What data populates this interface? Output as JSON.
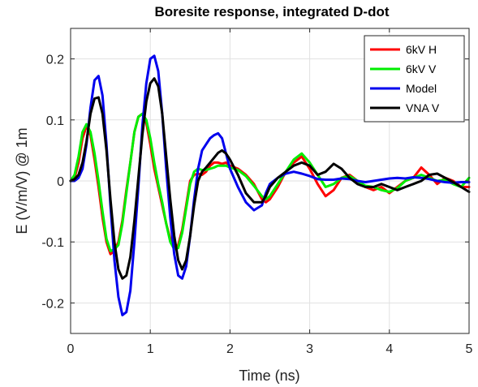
{
  "chart_data": {
    "type": "line",
    "title": "Boresite response, integrated D-dot",
    "xlabel": "Time (ns)",
    "ylabel": "E (V/m/V) @ 1m",
    "xlim": [
      0,
      5
    ],
    "ylim": [
      -0.25,
      0.25
    ],
    "xticks": [
      0,
      1,
      2,
      3,
      4,
      5
    ],
    "xtick_labels": [
      "0",
      "1",
      "2",
      "3",
      "4",
      "5"
    ],
    "yticks": [
      -0.2,
      -0.1,
      0,
      0.1,
      0.2
    ],
    "ytick_labels": [
      "-0.2",
      "-0.1",
      "0",
      "0.1",
      "0.2"
    ],
    "grid": true,
    "legend_position": "top-right",
    "series": [
      {
        "name": "6kV H",
        "color": "#ff0000",
        "x": [
          0,
          0.05,
          0.1,
          0.15,
          0.2,
          0.25,
          0.3,
          0.35,
          0.4,
          0.45,
          0.5,
          0.55,
          0.6,
          0.65,
          0.7,
          0.75,
          0.8,
          0.85,
          0.9,
          0.95,
          1.0,
          1.05,
          1.1,
          1.15,
          1.2,
          1.25,
          1.3,
          1.35,
          1.4,
          1.45,
          1.5,
          1.55,
          1.6,
          1.65,
          1.7,
          1.75,
          1.8,
          1.85,
          1.9,
          1.95,
          2.0,
          2.1,
          2.2,
          2.3,
          2.4,
          2.45,
          2.5,
          2.6,
          2.7,
          2.8,
          2.9,
          3.0,
          3.1,
          3.2,
          3.3,
          3.4,
          3.5,
          3.6,
          3.7,
          3.8,
          3.9,
          4.0,
          4.1,
          4.2,
          4.3,
          4.4,
          4.5,
          4.6,
          4.7,
          4.8,
          4.9,
          5.0
        ],
        "values": [
          0,
          0.005,
          0.03,
          0.07,
          0.09,
          0.075,
          0.035,
          -0.01,
          -0.06,
          -0.1,
          -0.12,
          -0.115,
          -0.1,
          -0.065,
          -0.015,
          0.03,
          0.08,
          0.105,
          0.11,
          0.095,
          0.06,
          0.02,
          -0.01,
          -0.04,
          -0.07,
          -0.095,
          -0.11,
          -0.105,
          -0.08,
          -0.04,
          0.0,
          0.01,
          0.012,
          0.01,
          0.015,
          0.025,
          0.03,
          0.03,
          0.028,
          0.03,
          0.025,
          0.02,
          0.01,
          -0.005,
          -0.03,
          -0.035,
          -0.03,
          -0.01,
          0.015,
          0.03,
          0.04,
          0.02,
          -0.005,
          -0.025,
          -0.015,
          0.005,
          0.01,
          0.0,
          -0.01,
          -0.015,
          -0.01,
          -0.02,
          -0.01,
          0.0,
          0.005,
          0.022,
          0.01,
          -0.005,
          0.005,
          0.0,
          -0.01,
          -0.01
        ]
      },
      {
        "name": "6kV V",
        "color": "#00ee00",
        "x": [
          0,
          0.05,
          0.1,
          0.15,
          0.2,
          0.25,
          0.3,
          0.35,
          0.4,
          0.45,
          0.5,
          0.55,
          0.6,
          0.65,
          0.7,
          0.75,
          0.8,
          0.85,
          0.9,
          0.95,
          1.0,
          1.05,
          1.1,
          1.15,
          1.2,
          1.25,
          1.3,
          1.35,
          1.4,
          1.45,
          1.5,
          1.55,
          1.6,
          1.65,
          1.7,
          1.75,
          1.8,
          1.85,
          1.9,
          1.95,
          2.0,
          2.1,
          2.2,
          2.3,
          2.4,
          2.45,
          2.5,
          2.6,
          2.7,
          2.8,
          2.9,
          3.0,
          3.1,
          3.2,
          3.3,
          3.4,
          3.5,
          3.6,
          3.7,
          3.8,
          3.9,
          4.0,
          4.1,
          4.2,
          4.3,
          4.4,
          4.5,
          4.6,
          4.7,
          4.8,
          4.9,
          5.0
        ],
        "values": [
          0,
          0.01,
          0.04,
          0.08,
          0.093,
          0.08,
          0.045,
          0.0,
          -0.05,
          -0.095,
          -0.115,
          -0.112,
          -0.105,
          -0.07,
          -0.02,
          0.03,
          0.08,
          0.105,
          0.11,
          0.1,
          0.07,
          0.03,
          -0.005,
          -0.035,
          -0.07,
          -0.1,
          -0.112,
          -0.11,
          -0.085,
          -0.045,
          -0.005,
          0.015,
          0.02,
          0.018,
          0.018,
          0.02,
          0.022,
          0.025,
          0.025,
          0.025,
          0.022,
          0.018,
          0.008,
          -0.008,
          -0.025,
          -0.03,
          -0.025,
          -0.005,
          0.015,
          0.035,
          0.045,
          0.03,
          0.01,
          -0.01,
          -0.005,
          0.005,
          0.008,
          0.0,
          -0.008,
          -0.01,
          -0.015,
          -0.018,
          -0.012,
          0.0,
          0.005,
          0.01,
          0.005,
          0.0,
          0.002,
          -0.005,
          -0.01,
          0.005
        ]
      },
      {
        "name": "Model",
        "color": "#0000ee",
        "x": [
          0,
          0.05,
          0.1,
          0.15,
          0.2,
          0.25,
          0.3,
          0.35,
          0.4,
          0.45,
          0.5,
          0.55,
          0.6,
          0.65,
          0.7,
          0.75,
          0.8,
          0.85,
          0.9,
          0.95,
          1.0,
          1.05,
          1.1,
          1.15,
          1.2,
          1.25,
          1.3,
          1.35,
          1.4,
          1.45,
          1.5,
          1.55,
          1.6,
          1.65,
          1.7,
          1.75,
          1.8,
          1.85,
          1.9,
          1.95,
          2.0,
          2.1,
          2.2,
          2.3,
          2.4,
          2.45,
          2.5,
          2.6,
          2.7,
          2.8,
          2.9,
          3.0,
          3.1,
          3.2,
          3.3,
          3.4,
          3.5,
          3.6,
          3.7,
          3.8,
          3.9,
          4.0,
          4.1,
          4.2,
          4.3,
          4.4,
          4.5,
          4.6,
          4.7,
          4.8,
          4.9,
          5.0
        ],
        "values": [
          0,
          0.0,
          0.005,
          0.02,
          0.06,
          0.12,
          0.165,
          0.172,
          0.14,
          0.06,
          -0.04,
          -0.13,
          -0.19,
          -0.22,
          -0.215,
          -0.18,
          -0.1,
          -0.01,
          0.09,
          0.16,
          0.2,
          0.205,
          0.18,
          0.11,
          0.02,
          -0.06,
          -0.12,
          -0.155,
          -0.16,
          -0.14,
          -0.09,
          -0.03,
          0.02,
          0.05,
          0.06,
          0.07,
          0.075,
          0.078,
          0.07,
          0.045,
          0.02,
          -0.01,
          -0.035,
          -0.048,
          -0.04,
          -0.02,
          -0.005,
          0.005,
          0.012,
          0.015,
          0.012,
          0.008,
          0.003,
          0.002,
          0.002,
          0.004,
          0.003,
          0.0,
          -0.002,
          0.0,
          0.002,
          0.004,
          0.005,
          0.004,
          0.006,
          0.005,
          0.003,
          0.0,
          -0.002,
          -0.003,
          -0.002,
          -0.002
        ]
      },
      {
        "name": "VNA V",
        "color": "#000000",
        "x": [
          0,
          0.05,
          0.1,
          0.15,
          0.2,
          0.25,
          0.3,
          0.35,
          0.4,
          0.45,
          0.5,
          0.55,
          0.6,
          0.65,
          0.7,
          0.75,
          0.8,
          0.85,
          0.9,
          0.95,
          1.0,
          1.05,
          1.1,
          1.15,
          1.2,
          1.25,
          1.3,
          1.35,
          1.4,
          1.45,
          1.5,
          1.55,
          1.6,
          1.65,
          1.7,
          1.75,
          1.8,
          1.85,
          1.9,
          1.95,
          2.0,
          2.1,
          2.2,
          2.3,
          2.4,
          2.45,
          2.5,
          2.6,
          2.7,
          2.8,
          2.9,
          3.0,
          3.1,
          3.2,
          3.3,
          3.4,
          3.5,
          3.6,
          3.7,
          3.8,
          3.9,
          4.0,
          4.1,
          4.2,
          4.3,
          4.4,
          4.5,
          4.6,
          4.7,
          4.8,
          4.9,
          5.0
        ],
        "values": [
          0,
          0.003,
          0.01,
          0.03,
          0.065,
          0.11,
          0.135,
          0.137,
          0.11,
          0.05,
          -0.03,
          -0.1,
          -0.145,
          -0.16,
          -0.155,
          -0.125,
          -0.065,
          0.005,
          0.075,
          0.13,
          0.16,
          0.168,
          0.155,
          0.11,
          0.04,
          -0.03,
          -0.09,
          -0.13,
          -0.145,
          -0.13,
          -0.09,
          -0.04,
          0.0,
          0.015,
          0.022,
          0.03,
          0.038,
          0.046,
          0.05,
          0.045,
          0.035,
          0.01,
          -0.02,
          -0.035,
          -0.035,
          -0.025,
          -0.01,
          0.005,
          0.015,
          0.025,
          0.03,
          0.025,
          0.01,
          0.015,
          0.028,
          0.02,
          0.005,
          -0.005,
          -0.01,
          -0.01,
          -0.005,
          -0.01,
          -0.015,
          -0.01,
          -0.005,
          0.0,
          0.01,
          0.012,
          0.005,
          -0.002,
          -0.01,
          -0.018
        ]
      }
    ]
  }
}
